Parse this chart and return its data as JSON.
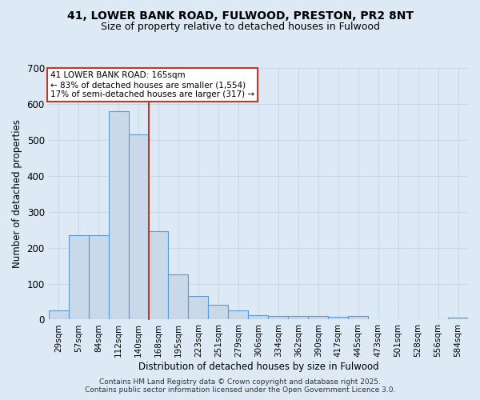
{
  "title_line1": "41, LOWER BANK ROAD, FULWOOD, PRESTON, PR2 8NT",
  "title_line2": "Size of property relative to detached houses in Fulwood",
  "xlabel": "Distribution of detached houses by size in Fulwood",
  "ylabel": "Number of detached properties",
  "categories": [
    "29sqm",
    "57sqm",
    "84sqm",
    "112sqm",
    "140sqm",
    "168sqm",
    "195sqm",
    "223sqm",
    "251sqm",
    "279sqm",
    "306sqm",
    "334sqm",
    "362sqm",
    "390sqm",
    "417sqm",
    "445sqm",
    "473sqm",
    "501sqm",
    "528sqm",
    "556sqm",
    "584sqm"
  ],
  "values": [
    25,
    235,
    235,
    580,
    515,
    245,
    125,
    65,
    40,
    25,
    13,
    10,
    10,
    10,
    8,
    10,
    0,
    0,
    0,
    0,
    5
  ],
  "bar_color": "#c9d9ea",
  "bar_edge_color": "#5b9bd5",
  "bar_edge_width": 0.8,
  "property_line_idx": 5,
  "property_line_color": "#c0392b",
  "annotation_text": "41 LOWER BANK ROAD: 165sqm\n← 83% of detached houses are smaller (1,554)\n17% of semi-detached houses are larger (317) →",
  "annotation_box_color": "#ffffff",
  "annotation_box_edge": "#c0392b",
  "ylim": [
    0,
    700
  ],
  "yticks": [
    0,
    100,
    200,
    300,
    400,
    500,
    600,
    700
  ],
  "grid_color": "#c8d8e8",
  "background_color": "#ddeaf6",
  "footer_line1": "Contains HM Land Registry data © Crown copyright and database right 2025.",
  "footer_line2": "Contains public sector information licensed under the Open Government Licence 3.0."
}
